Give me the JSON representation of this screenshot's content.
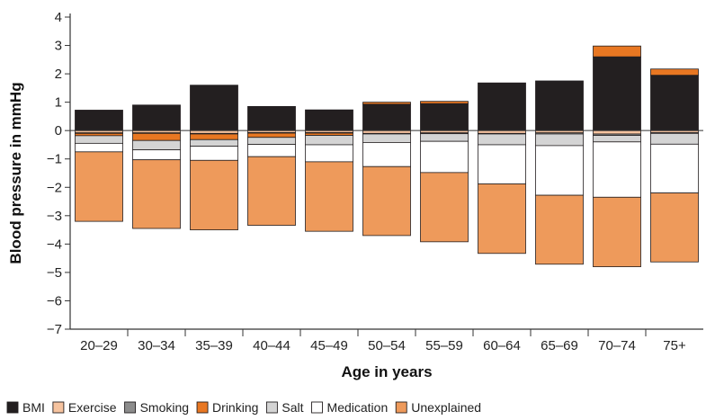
{
  "chart_data": {
    "type": "bar",
    "stacked": true,
    "title": "",
    "xlabel": "Age in years",
    "ylabel": "Blood pressure in mmHg",
    "ylim": [
      -7,
      4
    ],
    "yticks": [
      4,
      3,
      2,
      1,
      0,
      -1,
      -2,
      -3,
      -4,
      -5,
      -6,
      -7
    ],
    "ytick_labels": [
      "4",
      "3",
      "2",
      "1",
      "0",
      "−1",
      "−2",
      "−3",
      "−4",
      "−5",
      "−6",
      "−7"
    ],
    "legend_position": "bottom",
    "categories": [
      "20–29",
      "30–34",
      "35–39",
      "40–44",
      "45–49",
      "50–54",
      "55–59",
      "60–64",
      "65–69",
      "70–74",
      "75+"
    ],
    "series": [
      {
        "name": "BMI",
        "color": "#231f20",
        "values": [
          0.72,
          0.9,
          1.6,
          0.85,
          0.73,
          0.93,
          0.95,
          1.68,
          1.75,
          2.6,
          1.95
        ]
      },
      {
        "name": "Exercise",
        "color": "#f6c39f",
        "values": [
          -0.08,
          -0.08,
          -0.1,
          -0.07,
          -0.07,
          -0.1,
          -0.08,
          -0.1,
          -0.08,
          -0.12,
          -0.07
        ]
      },
      {
        "name": "Smoking",
        "color": "#8c8c8c",
        "values": [
          -0.02,
          -0.02,
          -0.02,
          -0.02,
          -0.02,
          -0.02,
          -0.03,
          -0.02,
          -0.04,
          -0.05,
          -0.03
        ]
      },
      {
        "name": "Drinking",
        "color": "#e87722",
        "values": [
          -0.08,
          -0.25,
          -0.2,
          -0.15,
          -0.08,
          0.07,
          0.08,
          0.0,
          0.0,
          0.38,
          0.22
        ]
      },
      {
        "name": "Salt",
        "color": "#d4d4d4",
        "values": [
          -0.27,
          -0.33,
          -0.23,
          -0.25,
          -0.33,
          -0.3,
          -0.27,
          -0.38,
          -0.41,
          -0.23,
          -0.38
        ]
      },
      {
        "name": "Medication",
        "color": "#ffffff",
        "values": [
          -0.3,
          -0.35,
          -0.5,
          -0.43,
          -0.6,
          -0.85,
          -1.1,
          -1.38,
          -1.75,
          -1.95,
          -1.72
        ]
      },
      {
        "name": "Unexplained",
        "color": "#ee9a5b",
        "values": [
          -2.45,
          -2.42,
          -2.45,
          -2.42,
          -2.45,
          -2.43,
          -2.44,
          -2.45,
          -2.43,
          -2.45,
          -2.43
        ]
      }
    ]
  }
}
